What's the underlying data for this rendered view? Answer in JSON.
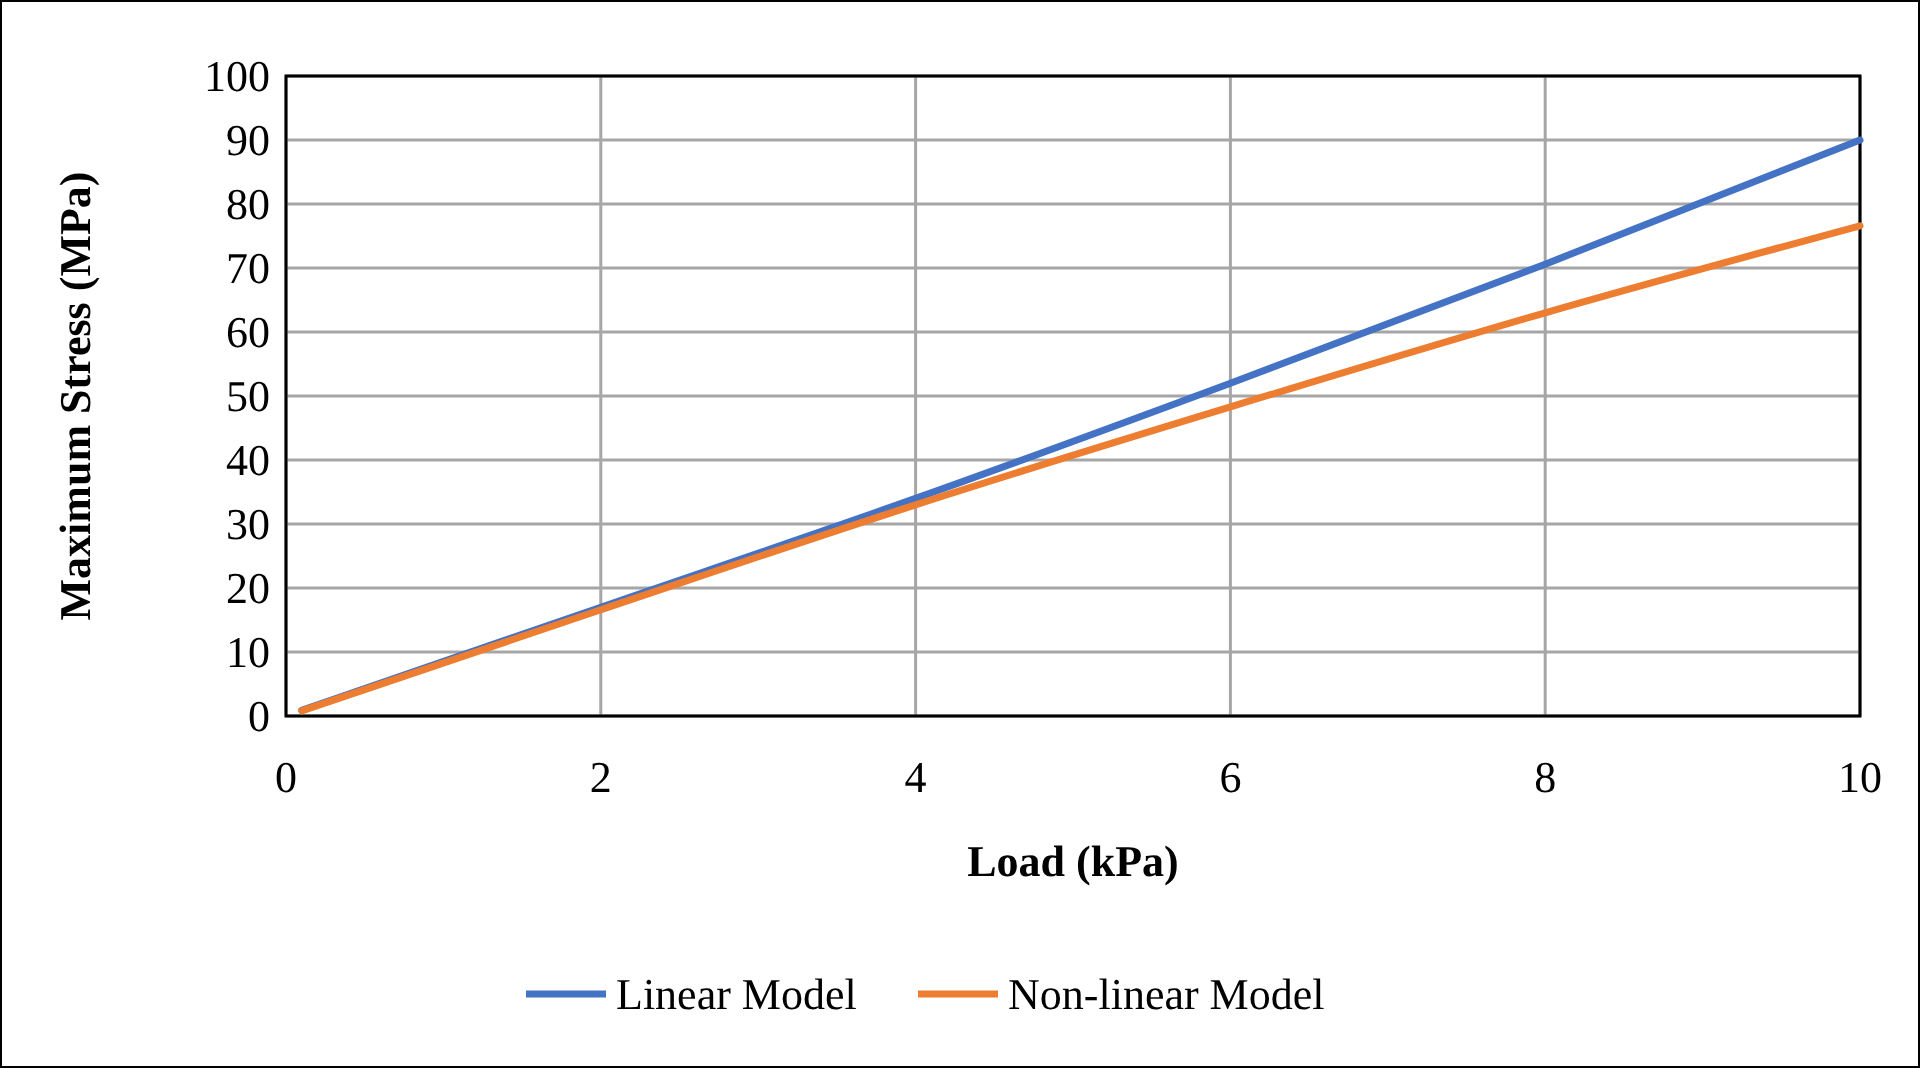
{
  "chart_data": {
    "type": "line",
    "xlabel": "Load (kPa)",
    "ylabel": "Maximum Stress (MPa)",
    "xlim": [
      0,
      10
    ],
    "xticks": [
      0,
      2,
      4,
      6,
      8,
      10
    ],
    "ylim": [
      0,
      100
    ],
    "yticks": [
      0,
      10,
      20,
      30,
      40,
      50,
      60,
      70,
      80,
      90,
      100
    ],
    "grid": true,
    "legend": "bottom",
    "line_style": "solid",
    "series": [
      {
        "name": "Linear Model",
        "color": "#4472c4",
        "x": [
          0.1,
          2,
          4,
          6,
          8,
          10
        ],
        "values": [
          0.9,
          17,
          34,
          52,
          70.6,
          90
        ]
      },
      {
        "name": "Non-linear Model",
        "color": "#ed7d31",
        "x": [
          0.1,
          2,
          4,
          6,
          8,
          10
        ],
        "values": [
          0.8,
          16.6,
          33,
          48.3,
          63,
          76.6
        ]
      }
    ]
  }
}
